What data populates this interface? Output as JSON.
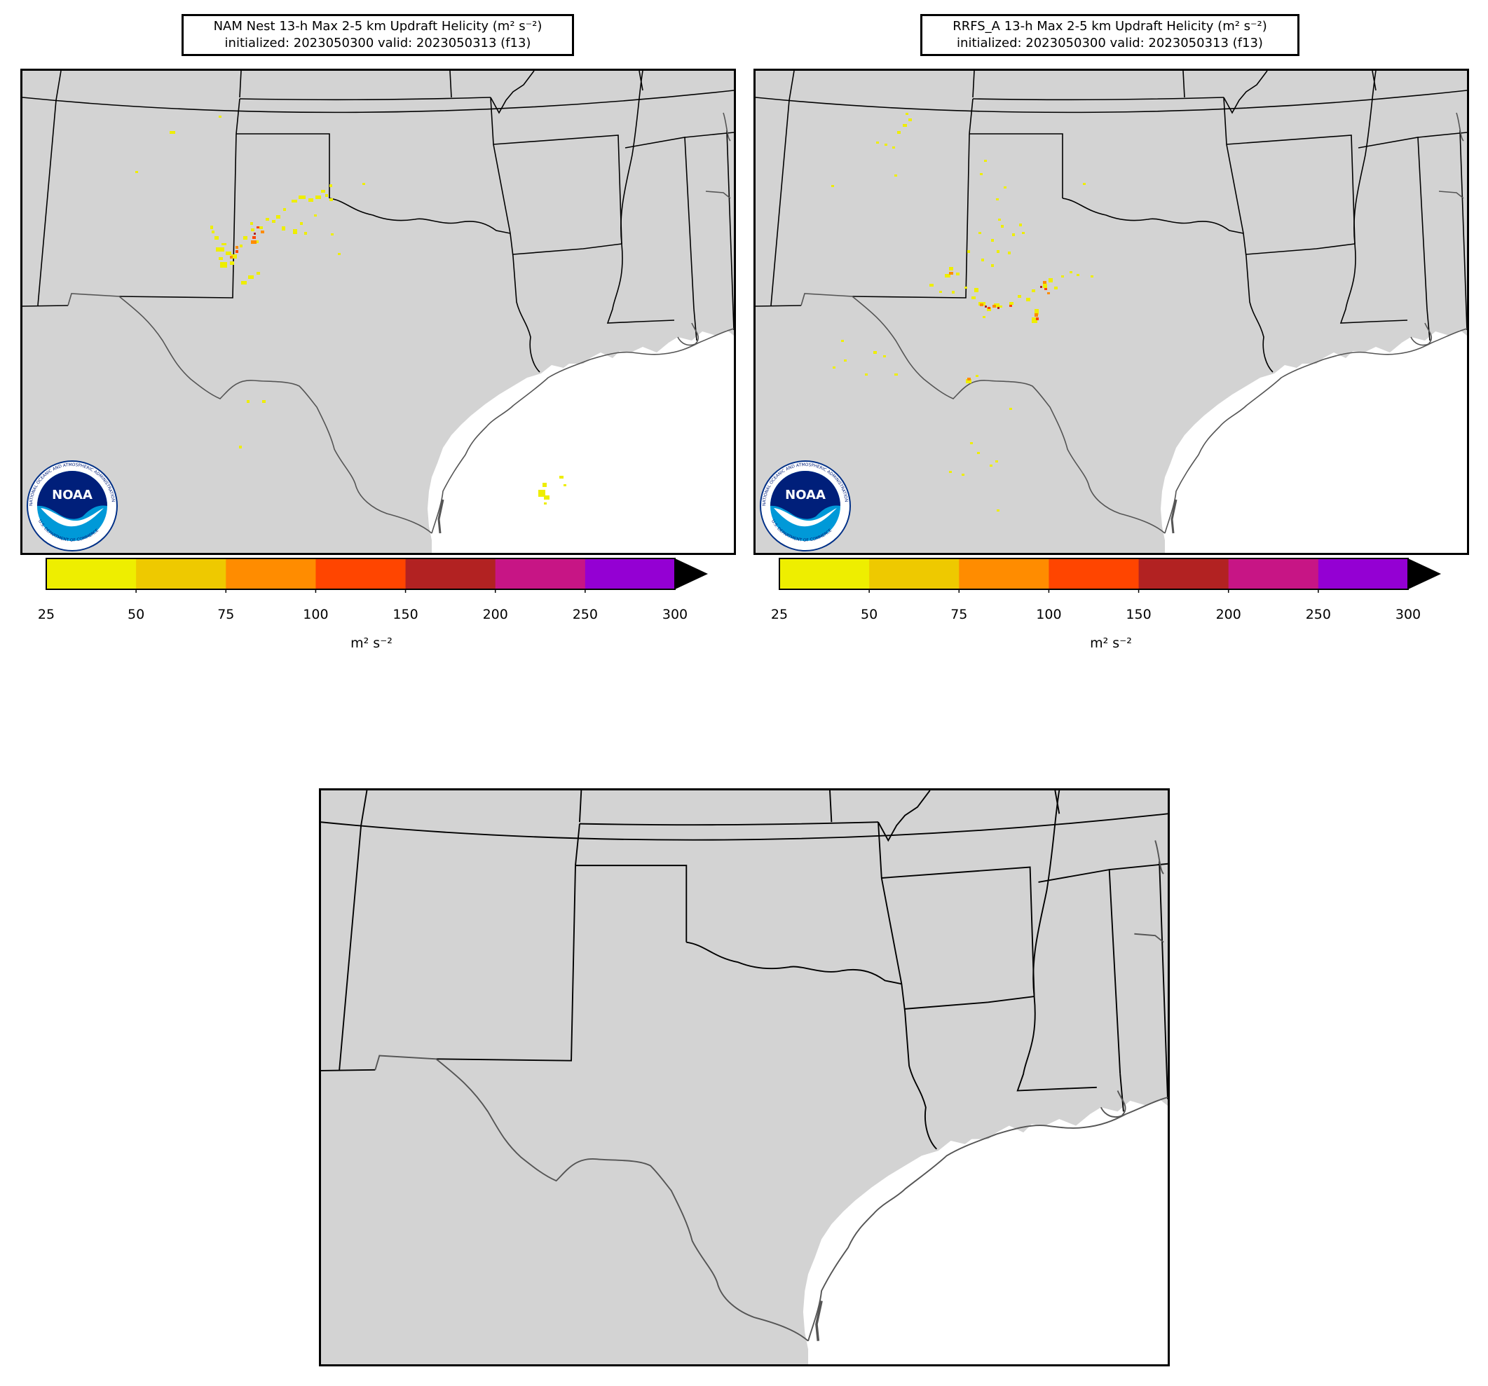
{
  "panels": [
    {
      "id": "nam",
      "title_line1": "NAM Nest 13-h Max 2-5 km Updraft Helicity (m² s⁻²)",
      "title_line2": "initialized: 2023050300 valid: 2023050313 (f13)"
    },
    {
      "id": "rrfs",
      "title_line1": "RRFS_A 13-h Max 2-5 km Updraft Helicity (m² s⁻²)",
      "title_line2": "initialized: 2023050300 valid: 2023050313 (f13)"
    }
  ],
  "colorbar": {
    "ticks": [
      "25",
      "50",
      "75",
      "100",
      "150",
      "200",
      "250",
      "300"
    ],
    "colors": [
      "#eeee00",
      "#eec900",
      "#ff8c00",
      "#ff4500",
      "#b22222",
      "#c71585",
      "#9400d3"
    ],
    "extend_color": "#000000",
    "unit": "m² s⁻²"
  },
  "logo": {
    "agency": "NOAA",
    "ring_text": "NATIONAL OCEANIC AND ATMOSPHERIC ADMINISTRATION · U.S. DEPARTMENT OF COMMERCE"
  },
  "colors": {
    "land": "#d3d3d3",
    "water": "#ffffff",
    "border": "#000000",
    "coast": "#555555"
  }
}
